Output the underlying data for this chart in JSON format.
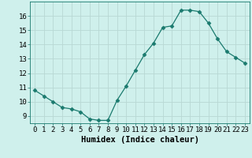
{
  "x": [
    0,
    1,
    2,
    3,
    4,
    5,
    6,
    7,
    8,
    9,
    10,
    11,
    12,
    13,
    14,
    15,
    16,
    17,
    18,
    19,
    20,
    21,
    22,
    23
  ],
  "y": [
    10.8,
    10.4,
    10.0,
    9.6,
    9.5,
    9.3,
    8.8,
    8.7,
    8.7,
    10.1,
    11.1,
    12.2,
    13.3,
    14.1,
    15.2,
    15.3,
    16.4,
    16.4,
    16.3,
    15.5,
    14.4,
    13.5,
    13.1,
    12.7
  ],
  "xlabel": "Humidex (Indice chaleur)",
  "ylim": [
    8.5,
    17.0
  ],
  "xlim": [
    -0.5,
    23.5
  ],
  "yticks": [
    9,
    10,
    11,
    12,
    13,
    14,
    15,
    16
  ],
  "xticks": [
    0,
    1,
    2,
    3,
    4,
    5,
    6,
    7,
    8,
    9,
    10,
    11,
    12,
    13,
    14,
    15,
    16,
    17,
    18,
    19,
    20,
    21,
    22,
    23
  ],
  "line_color": "#1a7a6e",
  "marker": "D",
  "marker_size": 2.5,
  "bg_color": "#cff0ec",
  "grid_color": "#b8d8d4",
  "xlabel_fontsize": 7.5,
  "tick_fontsize": 6.5,
  "linewidth": 0.9
}
